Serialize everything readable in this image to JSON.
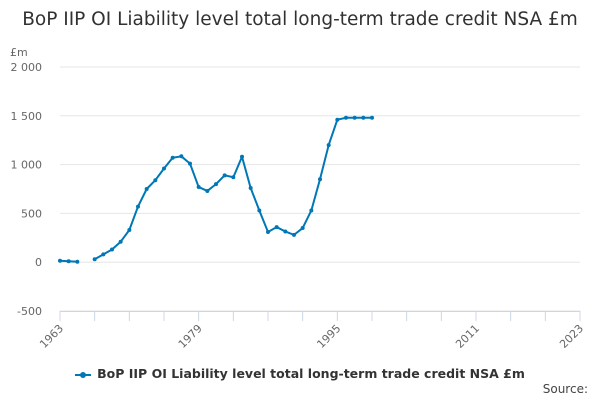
{
  "title": "BoP IIP OI Liability level total long-term trade credit NSA £m",
  "source_label": "Source:",
  "colors": {
    "series": "#0077b6",
    "grid": "#e6e6e6",
    "axis": "#ccd6eb"
  },
  "chart_data": {
    "type": "line",
    "title": "BoP IIP OI Liability level total long-term trade credit NSA £m",
    "ylabel": "£m",
    "xlabel": "",
    "ylim": [
      -500,
      2000
    ],
    "xlim": [
      1963,
      2023
    ],
    "yticks": [
      -500,
      0,
      500,
      1000,
      1500,
      2000
    ],
    "ytick_labels": [
      "-500",
      "0",
      "500",
      "1 000",
      "1 500",
      "2 000"
    ],
    "xticks": [
      1963,
      1979,
      1995,
      2011,
      2023
    ],
    "xtick_labels": [
      "1963",
      "1979",
      "1995",
      "2011",
      "2023"
    ],
    "legend": "bottom",
    "series": [
      {
        "name": "BoP IIP OI Liability level total long-term trade credit NSA £m",
        "x": [
          1963,
          1964,
          1965,
          1966,
          1967,
          1968,
          1969,
          1970,
          1971,
          1972,
          1973,
          1974,
          1975,
          1976,
          1977,
          1978,
          1979,
          1980,
          1981,
          1982,
          1983,
          1984,
          1985,
          1986,
          1987,
          1988,
          1989,
          1990,
          1991,
          1992,
          1993,
          1994,
          1995,
          1996,
          1997,
          1998,
          1999
        ],
        "y": [
          15,
          10,
          5,
          null,
          30,
          80,
          130,
          210,
          330,
          570,
          750,
          840,
          960,
          1070,
          1085,
          1010,
          770,
          730,
          800,
          890,
          870,
          1080,
          760,
          530,
          310,
          360,
          315,
          280,
          350,
          530,
          850,
          1200,
          1460,
          1480,
          1480,
          1480,
          1480
        ]
      }
    ]
  }
}
